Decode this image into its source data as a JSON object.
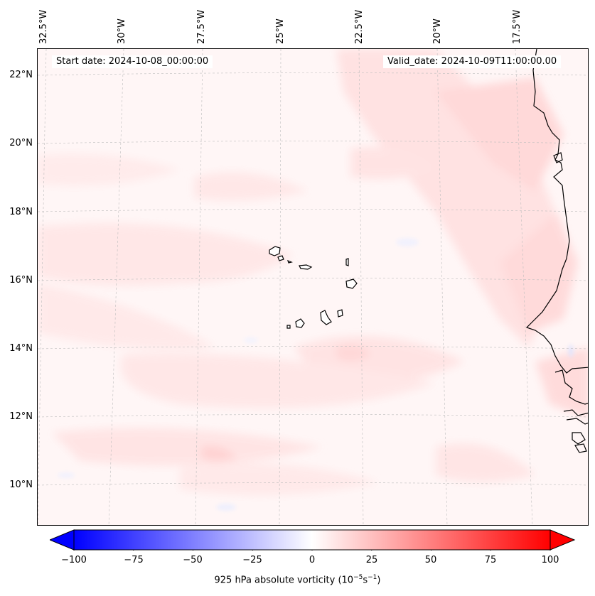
{
  "map": {
    "start_date": "Start date: 2024-10-08_00:00:00",
    "valid_date": "Valid_date: 2024-10-09T11:00:00.00",
    "longitude_labels": [
      "32.5°W",
      "30°W",
      "27.5°W",
      "25°W",
      "22.5°W",
      "20°W",
      "17.5°W"
    ],
    "latitude_labels": [
      "22°N",
      "20°N",
      "18°N",
      "16°N",
      "14°N",
      "12°N",
      "10°N"
    ],
    "features": [
      "Cape Verde islands",
      "West African coastline"
    ]
  },
  "colorbar": {
    "ticks": [
      "−100",
      "−75",
      "−50",
      "−25",
      "0",
      "25",
      "50",
      "75",
      "100"
    ],
    "label_main": "925 hPa absolute vorticity (10",
    "label_exp1": "−5",
    "label_mid": "s",
    "label_exp2": "−1",
    "label_end": ")",
    "min_color": "#0000ff",
    "mid_color": "#ffffff",
    "max_color": "#ff0000"
  }
}
